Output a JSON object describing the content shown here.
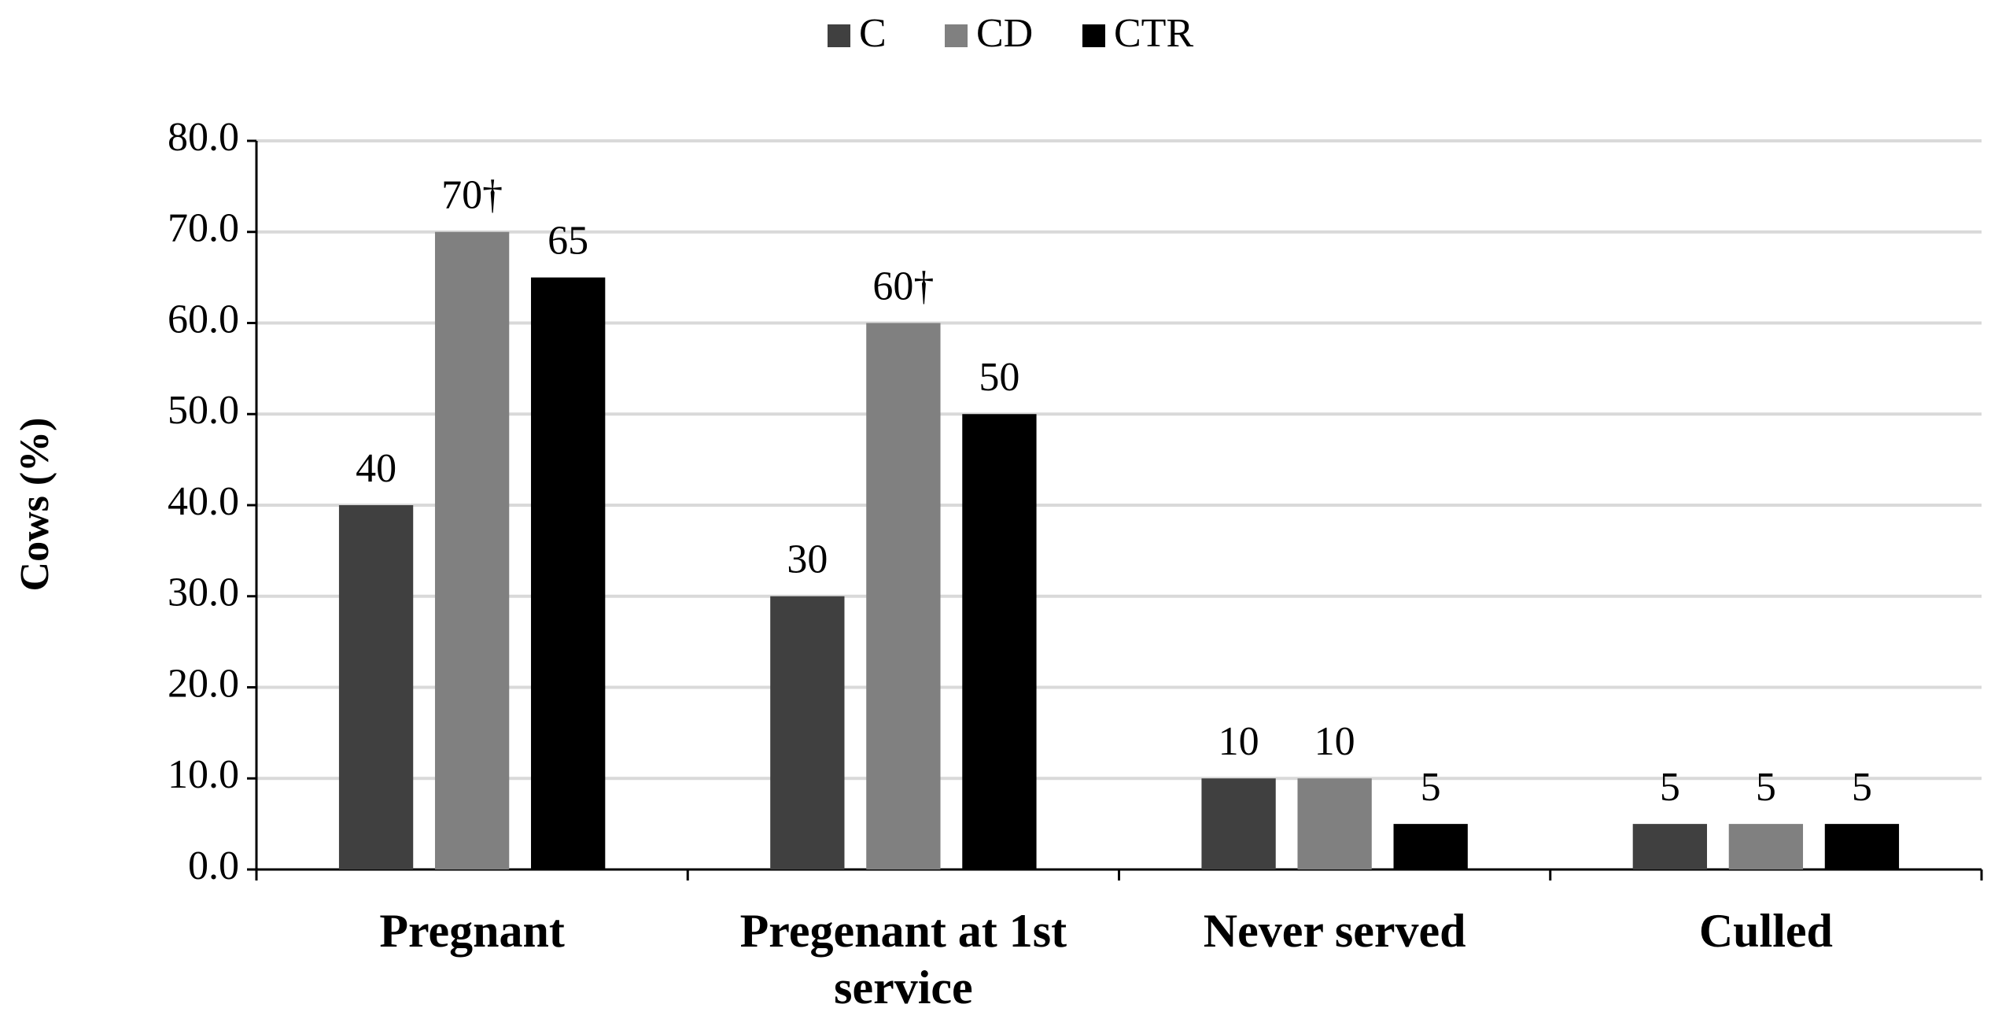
{
  "chart_data": {
    "type": "bar",
    "y_label": "Cows (%)",
    "categories": [
      "Pregnant",
      "Pregenant at 1st service",
      "Never served",
      "Culled"
    ],
    "series": [
      {
        "name": "C",
        "color": "#404040",
        "values": [
          40,
          30,
          10,
          5
        ]
      },
      {
        "name": "CD",
        "color": "#808080",
        "values": [
          70,
          60,
          10,
          5
        ],
        "value_labels": [
          "70†",
          "60†",
          "10",
          "5"
        ]
      },
      {
        "name": "CTR",
        "color": "#000000",
        "values": [
          65,
          50,
          5,
          5
        ]
      }
    ],
    "ylim": [
      0,
      80
    ],
    "yticks": [
      {
        "value": 0,
        "label": "0.0"
      },
      {
        "value": 10,
        "label": "10.0"
      },
      {
        "value": 20,
        "label": "20.0"
      },
      {
        "value": 30,
        "label": "30.0"
      },
      {
        "value": 40,
        "label": "40.0"
      },
      {
        "value": 50,
        "label": "50.0"
      },
      {
        "value": 60,
        "label": "60.0"
      },
      {
        "value": 70,
        "label": "70.0"
      },
      {
        "value": 80,
        "label": "80.0"
      }
    ],
    "grid": true,
    "legend": "top"
  }
}
